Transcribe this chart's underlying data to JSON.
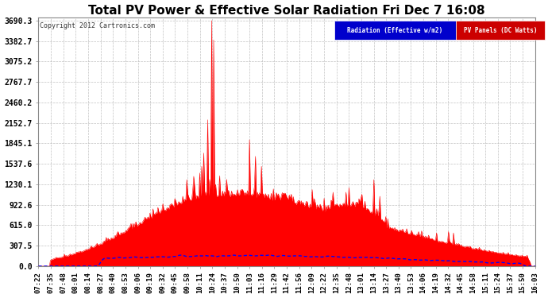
{
  "title": "Total PV Power & Effective Solar Radiation Fri Dec 7 16:08",
  "copyright": "Copyright 2012 Cartronics.com",
  "legend_radiation": "Radiation (Effective w/m2)",
  "legend_pv": "PV Panels (DC Watts)",
  "yticks": [
    0.0,
    307.5,
    615.0,
    922.6,
    1230.1,
    1537.6,
    1845.1,
    2152.7,
    2460.2,
    2767.7,
    3075.2,
    3382.7,
    3690.3
  ],
  "ymax": 3690.3,
  "ymin": 0.0,
  "background_color": "#ffffff",
  "plot_bg_color": "#ffffff",
  "grid_color": "#bbbbbb",
  "title_color": "#000000",
  "radiation_color": "#0000ff",
  "pv_color": "#ff0000",
  "title_fontsize": 11,
  "label_fontsize": 7,
  "xtick_labels": [
    "07:22",
    "07:35",
    "07:48",
    "08:01",
    "08:14",
    "08:27",
    "08:40",
    "08:53",
    "09:06",
    "09:19",
    "09:32",
    "09:45",
    "09:58",
    "10:11",
    "10:24",
    "10:37",
    "10:50",
    "11:03",
    "11:16",
    "11:29",
    "11:42",
    "11:56",
    "12:09",
    "12:22",
    "12:35",
    "12:48",
    "13:01",
    "13:14",
    "13:27",
    "13:40",
    "13:53",
    "14:06",
    "14:19",
    "14:32",
    "14:45",
    "14:58",
    "15:11",
    "15:24",
    "15:37",
    "15:50",
    "16:03"
  ]
}
